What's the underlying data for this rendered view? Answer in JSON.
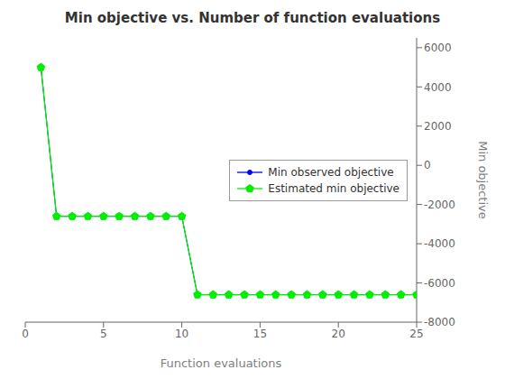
{
  "chart_data": {
    "type": "line",
    "title": "Min objective vs. Number of function evaluations",
    "xlabel": "Function evaluations",
    "ylabel": "Min objective",
    "x": [
      1,
      2,
      3,
      4,
      5,
      6,
      7,
      8,
      9,
      10,
      11,
      12,
      13,
      14,
      15,
      16,
      17,
      18,
      19,
      20,
      21,
      22,
      23,
      24,
      25
    ],
    "series": [
      {
        "name": "Min observed objective",
        "color": "#0000FF",
        "marker": "point",
        "values": [
          5000,
          -2600,
          -2600,
          -2600,
          -2600,
          -2600,
          -2600,
          -2600,
          -2600,
          -2600,
          -6600,
          -6600,
          -6600,
          -6600,
          -6600,
          -6600,
          -6600,
          -6600,
          -6600,
          -6600,
          -6600,
          -6600,
          -6600,
          -6600,
          -6600
        ]
      },
      {
        "name": "Estimated min objective",
        "color": "#00EE00",
        "marker": "pentagon",
        "values": [
          5000,
          -2600,
          -2600,
          -2600,
          -2600,
          -2600,
          -2600,
          -2600,
          -2600,
          -2600,
          -6600,
          -6600,
          -6600,
          -6600,
          -6600,
          -6600,
          -6600,
          -6600,
          -6600,
          -6600,
          -6600,
          -6600,
          -6600,
          -6600,
          -6600
        ]
      }
    ],
    "xlim": [
      0,
      25
    ],
    "xticks": [
      0,
      5,
      10,
      15,
      20,
      25
    ],
    "ylim": [
      -8000,
      6500
    ],
    "yticks": [
      -8000,
      -6000,
      -4000,
      -2000,
      0,
      2000,
      4000,
      6000
    ],
    "legend": "center right",
    "grid": false
  }
}
